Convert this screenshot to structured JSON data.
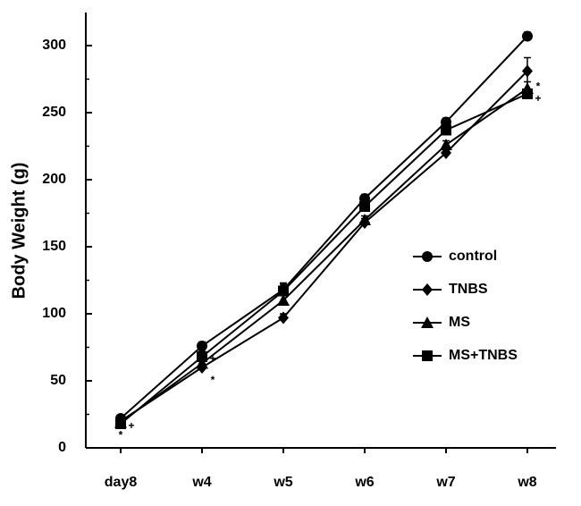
{
  "chart_data": {
    "type": "line",
    "title": "",
    "xlabel": "",
    "ylabel": "Body Weight (g)",
    "ylim": [
      0,
      325
    ],
    "yticks": [
      0,
      50,
      100,
      150,
      200,
      250,
      300
    ],
    "categories": [
      "day8",
      "w4",
      "w5",
      "w6",
      "w7",
      "w8"
    ],
    "legend_position": "right",
    "series": [
      {
        "name": "control",
        "marker": "circle",
        "values": [
          22,
          76,
          118,
          186,
          243,
          307
        ],
        "errors": [
          2,
          3,
          4,
          3,
          3,
          3
        ]
      },
      {
        "name": "TNBS",
        "marker": "diamond",
        "values": [
          20,
          60,
          97,
          168,
          220,
          281
        ],
        "errors": [
          2,
          3,
          3,
          3,
          3,
          10
        ]
      },
      {
        "name": "MS",
        "marker": "triangle",
        "values": [
          19,
          63,
          110,
          170,
          226,
          268
        ],
        "errors": [
          2,
          3,
          4,
          3,
          3,
          5
        ]
      },
      {
        "name": "MS+TNBS",
        "marker": "square",
        "values": [
          18,
          68,
          117,
          180,
          237,
          264
        ],
        "errors": [
          2,
          4,
          6,
          3,
          3,
          3
        ]
      }
    ],
    "annotations": [
      {
        "category": "day8",
        "value": 9,
        "text": "*"
      },
      {
        "category": "day8",
        "value": 16,
        "text": "+"
      },
      {
        "category": "w4",
        "value": 50,
        "text": "*"
      },
      {
        "category": "w4",
        "value": 66,
        "text": "+"
      },
      {
        "category": "w8",
        "value": 269,
        "text": "*"
      },
      {
        "category": "w8",
        "value": 260,
        "text": "+"
      }
    ]
  }
}
